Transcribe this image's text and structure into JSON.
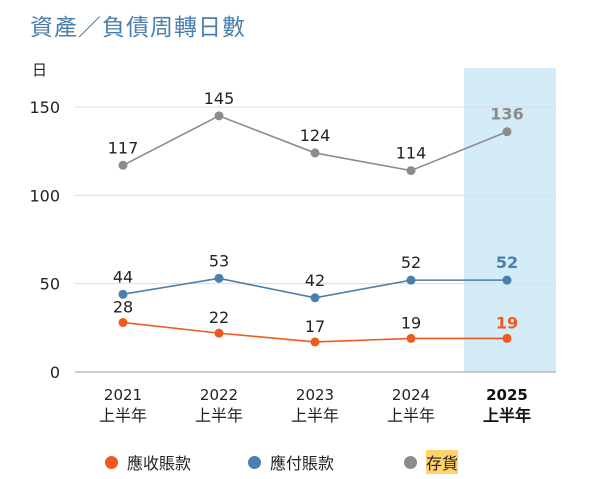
{
  "chart_data": {
    "type": "line",
    "title": "資產／負債周轉日數",
    "ylabel": "日",
    "ylim": [
      0,
      160
    ],
    "yticks": [
      0,
      50,
      100,
      150
    ],
    "grid": true,
    "categories": [
      [
        "2021",
        "上半年"
      ],
      [
        "2022",
        "上半年"
      ],
      [
        "2023",
        "上半年"
      ],
      [
        "2024",
        "上半年"
      ],
      [
        "2025",
        "上半年"
      ]
    ],
    "highlight_category": 4,
    "highlight_color": "#d4ebf8",
    "legend_position": "bottom",
    "series": [
      {
        "name": "應收賬款",
        "color": "#f05a1e",
        "values": [
          28,
          22,
          17,
          19,
          19
        ]
      },
      {
        "name": "應付賬款",
        "color": "#4a7fae",
        "values": [
          44,
          53,
          42,
          52,
          52
        ]
      },
      {
        "name": "存貨",
        "color": "#8c8c8c",
        "values": [
          117,
          145,
          124,
          114,
          136
        ],
        "legend_highlight": "#ffd36b"
      }
    ]
  }
}
